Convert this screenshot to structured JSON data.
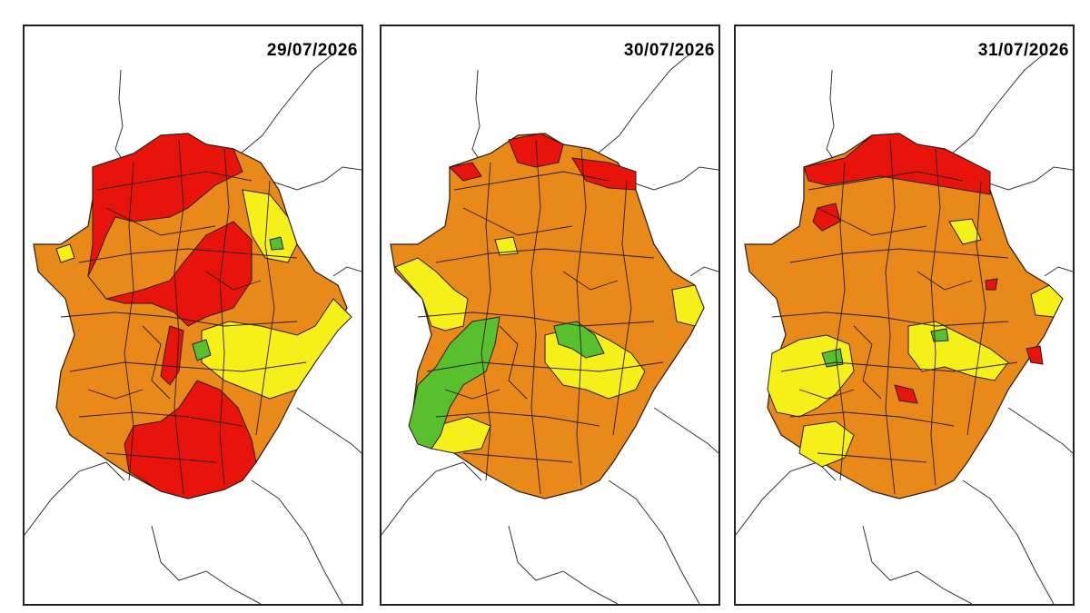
{
  "colors": {
    "red": "#e8140c",
    "orange": "#e8891a",
    "yellow": "#f5ef1a",
    "green": "#58c02c",
    "border": "#2a1a10",
    "country_line": "#333333"
  },
  "panels": [
    {
      "date": "29/07/2026"
    },
    {
      "date": "30/07/2026"
    },
    {
      "date": "31/07/2026"
    }
  ]
}
